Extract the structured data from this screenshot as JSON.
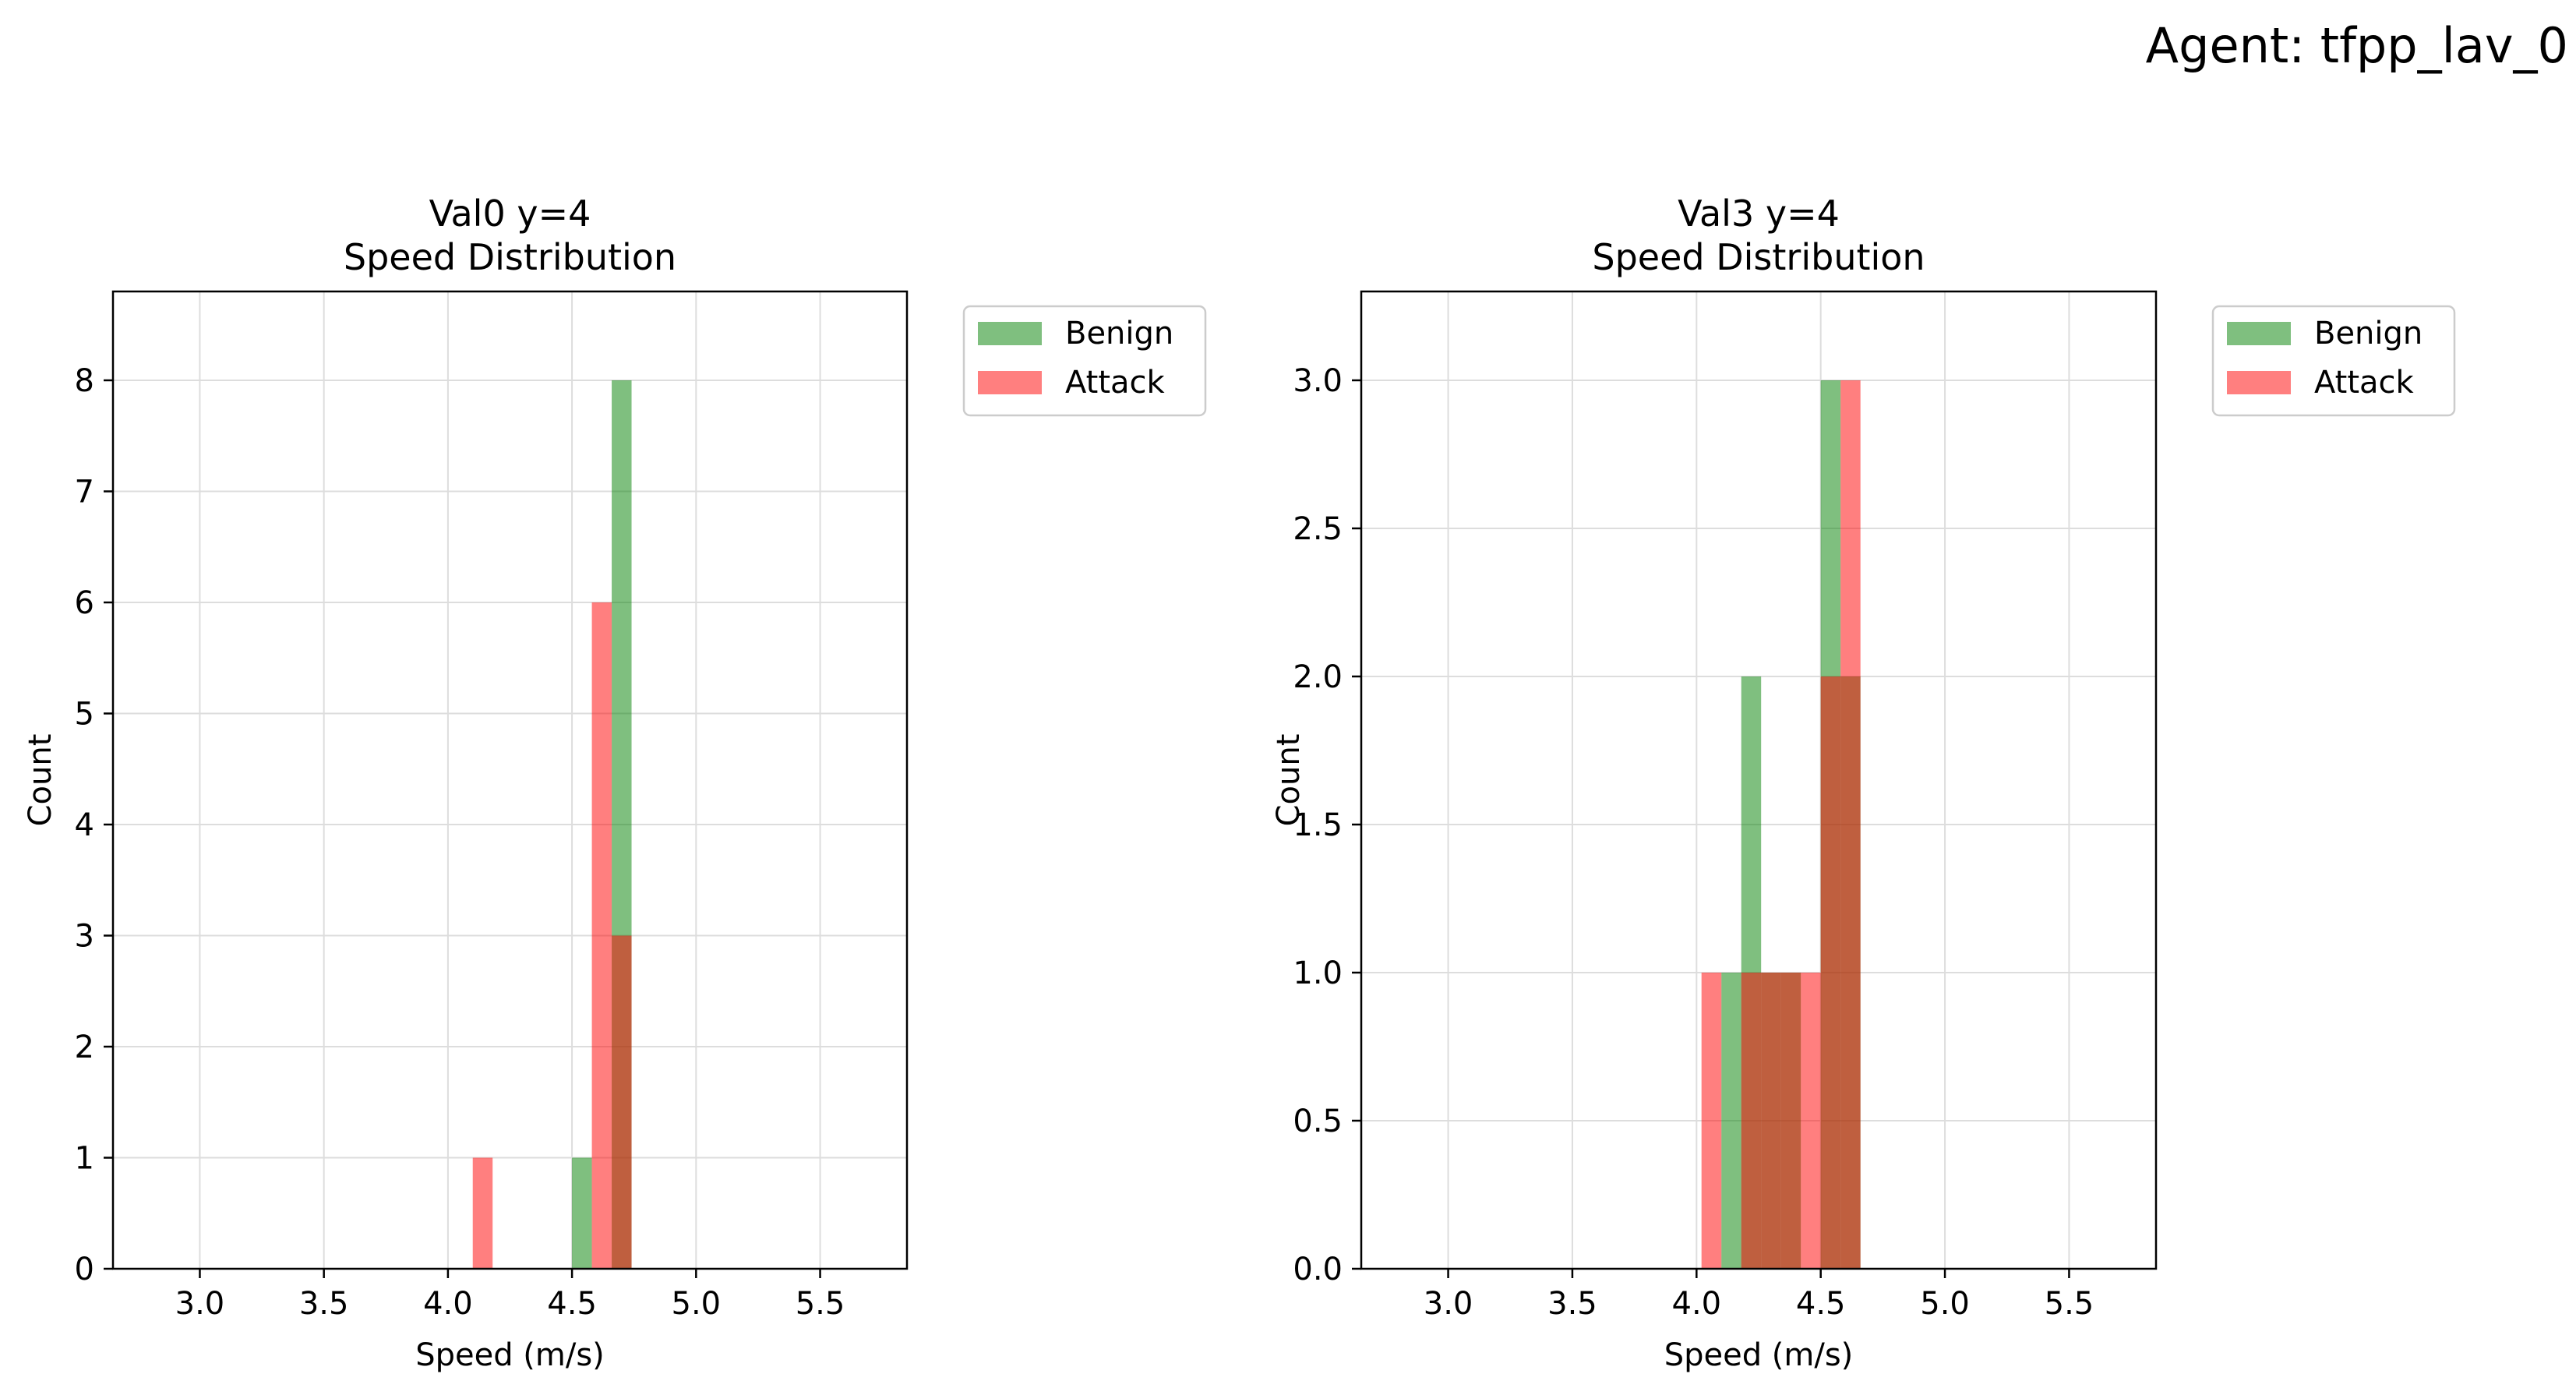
{
  "figure": {
    "suptitle": "Agent: tfpp_lav_0"
  },
  "colors": {
    "benign": "#008000",
    "attack": "#ff0000",
    "overlap": "#bf5f3f",
    "grid": "#dddddd"
  },
  "chart_data": [
    {
      "type": "histogram",
      "title": "Val0 y=4",
      "subtitle": "Speed Distribution",
      "xlabel": "Speed (m/s)",
      "ylabel": "Count",
      "xlim": [
        2.65,
        5.85
      ],
      "ylim": [
        0,
        8.8
      ],
      "xticks": [
        3.0,
        3.5,
        4.0,
        4.5,
        5.0,
        5.5
      ],
      "xtick_labels": [
        "3.0",
        "3.5",
        "4.0",
        "4.5",
        "5.0",
        "5.5"
      ],
      "yticks": [
        0,
        1,
        2,
        3,
        4,
        5,
        6,
        7,
        8
      ],
      "ytick_labels": [
        "0",
        "1",
        "2",
        "3",
        "4",
        "5",
        "6",
        "7",
        "8"
      ],
      "grid": true,
      "legend_position": "outside top-right",
      "series": [
        {
          "name": "Benign",
          "color": "#008000",
          "alpha": 0.5,
          "bins": [
            {
              "x0": 4.5,
              "x1": 4.58,
              "count": 1
            },
            {
              "x0": 4.66,
              "x1": 4.74,
              "count": 8
            }
          ]
        },
        {
          "name": "Attack",
          "color": "#ff0000",
          "alpha": 0.5,
          "bins": [
            {
              "x0": 4.1,
              "x1": 4.18,
              "count": 1
            },
            {
              "x0": 4.58,
              "x1": 4.66,
              "count": 6
            },
            {
              "x0": 4.66,
              "x1": 4.74,
              "count": 3
            }
          ]
        }
      ]
    },
    {
      "type": "histogram",
      "title": "Val3 y=4",
      "subtitle": "Speed Distribution",
      "xlabel": "Speed (m/s)",
      "ylabel": "Count",
      "xlim": [
        2.65,
        5.85
      ],
      "ylim": [
        0,
        3.3
      ],
      "xticks": [
        3.0,
        3.5,
        4.0,
        4.5,
        5.0,
        5.5
      ],
      "xtick_labels": [
        "3.0",
        "3.5",
        "4.0",
        "4.5",
        "5.0",
        "5.5"
      ],
      "yticks": [
        0,
        0.5,
        1.0,
        1.5,
        2.0,
        2.5,
        3.0
      ],
      "ytick_labels": [
        "0.0",
        "0.5",
        "1.0",
        "1.5",
        "2.0",
        "2.5",
        "3.0"
      ],
      "grid": true,
      "legend_position": "outside top-right",
      "series": [
        {
          "name": "Benign",
          "color": "#008000",
          "alpha": 0.5,
          "bins": [
            {
              "x0": 4.1,
              "x1": 4.18,
              "count": 1
            },
            {
              "x0": 4.18,
              "x1": 4.26,
              "count": 2
            },
            {
              "x0": 4.26,
              "x1": 4.34,
              "count": 1
            },
            {
              "x0": 4.34,
              "x1": 4.42,
              "count": 1
            },
            {
              "x0": 4.5,
              "x1": 4.58,
              "count": 3
            },
            {
              "x0": 4.58,
              "x1": 4.66,
              "count": 2
            }
          ]
        },
        {
          "name": "Attack",
          "color": "#ff0000",
          "alpha": 0.5,
          "bins": [
            {
              "x0": 4.02,
              "x1": 4.1,
              "count": 1
            },
            {
              "x0": 4.18,
              "x1": 4.26,
              "count": 1
            },
            {
              "x0": 4.26,
              "x1": 4.34,
              "count": 1
            },
            {
              "x0": 4.34,
              "x1": 4.42,
              "count": 1
            },
            {
              "x0": 4.42,
              "x1": 4.5,
              "count": 1
            },
            {
              "x0": 4.5,
              "x1": 4.58,
              "count": 2
            },
            {
              "x0": 4.58,
              "x1": 4.66,
              "count": 3
            }
          ]
        }
      ]
    }
  ]
}
